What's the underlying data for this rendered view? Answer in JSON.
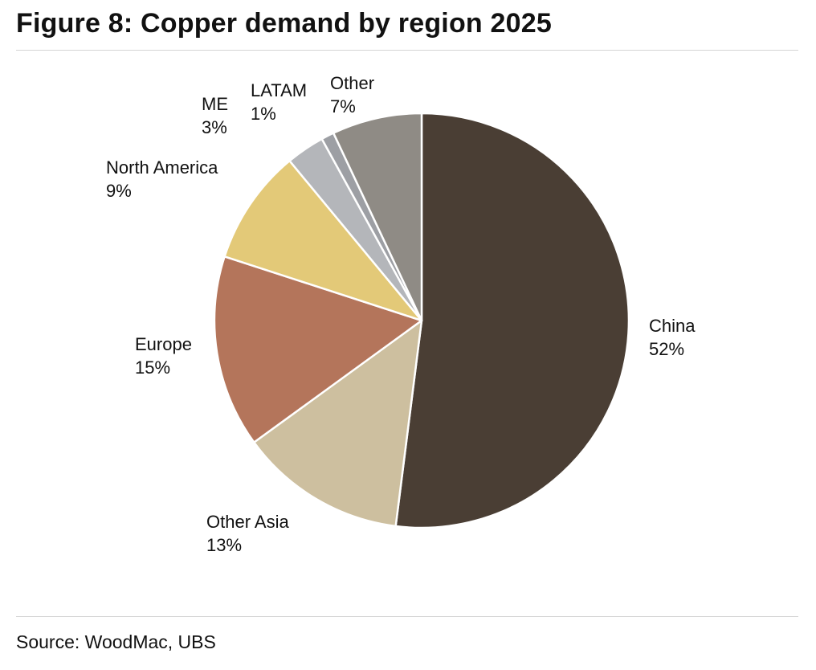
{
  "title": "Figure 8: Copper demand by region 2025",
  "source": "Source: WoodMac, UBS",
  "chart_data": {
    "type": "pie",
    "title": "Figure 8: Copper demand by region 2025",
    "categories": [
      "China",
      "Other Asia",
      "Europe",
      "North America",
      "ME",
      "LATAM",
      "Other"
    ],
    "values": [
      52,
      13,
      15,
      9,
      3,
      1,
      7
    ],
    "labels": [
      "52%",
      "13%",
      "15%",
      "9%",
      "3%",
      "1%",
      "7%"
    ],
    "colors": [
      "#4a3e34",
      "#cdbf9f",
      "#b4755b",
      "#e3c978",
      "#b4b6ba",
      "#9d9fa4",
      "#8f8b85"
    ],
    "start_angle": "12 o'clock",
    "direction": "clockwise",
    "legend": "none (labels beside slices)"
  }
}
